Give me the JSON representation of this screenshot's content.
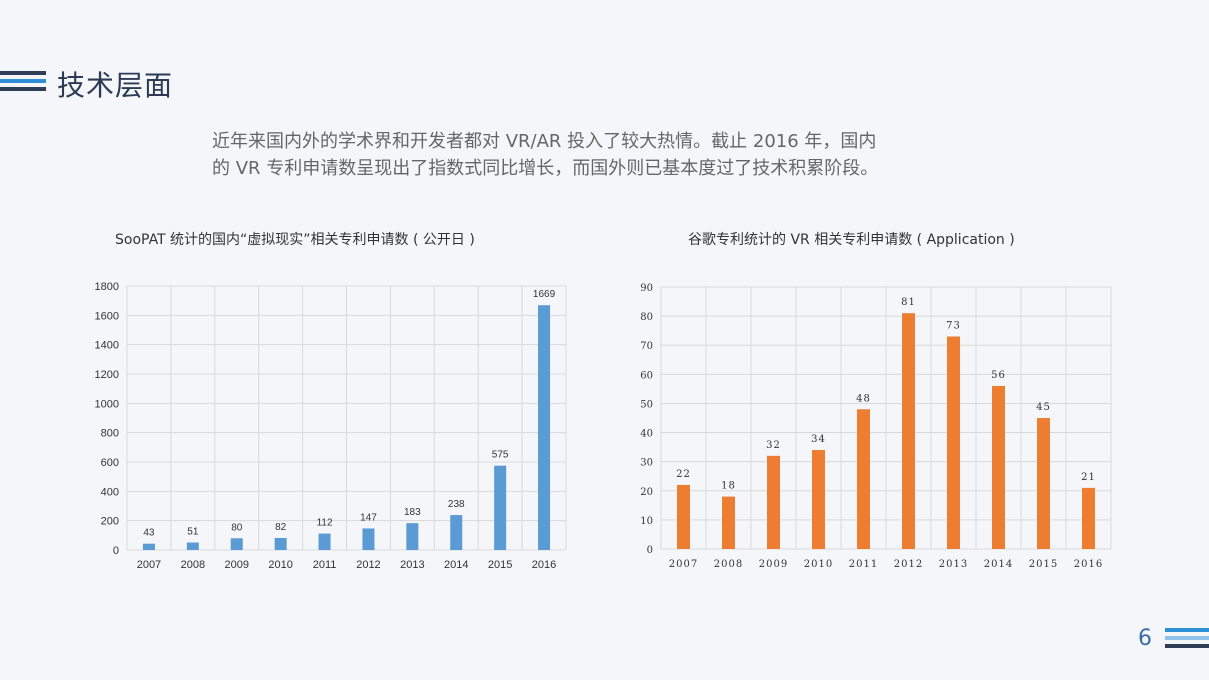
{
  "slide": {
    "title": "技术层面",
    "intro_line1": "近年来国内外的学术界和开发者都对 VR/AR 投入了较大热情。截止 2016 年，国内",
    "intro_line2": "的 VR 专利申请数呈现出了指数式同比增长，而国外则已基本度过了技术积累阶段。",
    "page_number": "6"
  },
  "colors": {
    "title": "#2b3b55",
    "left_bars": "#5b9bd5",
    "right_bars": "#ed7d31",
    "grid": "#d9d9d9"
  },
  "chart_data": [
    {
      "type": "bar",
      "title": "SooPAT 统计的国内“虚拟现实”相关专利申请数 ( 公开日 )",
      "categories": [
        "2007",
        "2008",
        "2009",
        "2010",
        "2011",
        "2012",
        "2013",
        "2014",
        "2015",
        "2016"
      ],
      "values": [
        43,
        51,
        80,
        82,
        112,
        147,
        183,
        238,
        575,
        1669
      ],
      "ylim": [
        0,
        1800
      ],
      "yticks": [
        0,
        200,
        400,
        600,
        800,
        1000,
        1200,
        1400,
        1600,
        1800
      ],
      "grid": true,
      "data_labels": true,
      "color": "#5b9bd5"
    },
    {
      "type": "bar",
      "title": "谷歌专利统计的 VR 相关专利申请数 ( Application )",
      "categories": [
        "2007",
        "2008",
        "2009",
        "2010",
        "2011",
        "2012",
        "2013",
        "2014",
        "2015",
        "2016"
      ],
      "values": [
        22,
        18,
        32,
        34,
        48,
        81,
        73,
        56,
        45,
        21
      ],
      "ylim": [
        0,
        90
      ],
      "yticks": [
        0,
        10,
        20,
        30,
        40,
        50,
        60,
        70,
        80,
        90
      ],
      "grid": true,
      "data_labels": true,
      "color": "#ed7d31"
    }
  ]
}
